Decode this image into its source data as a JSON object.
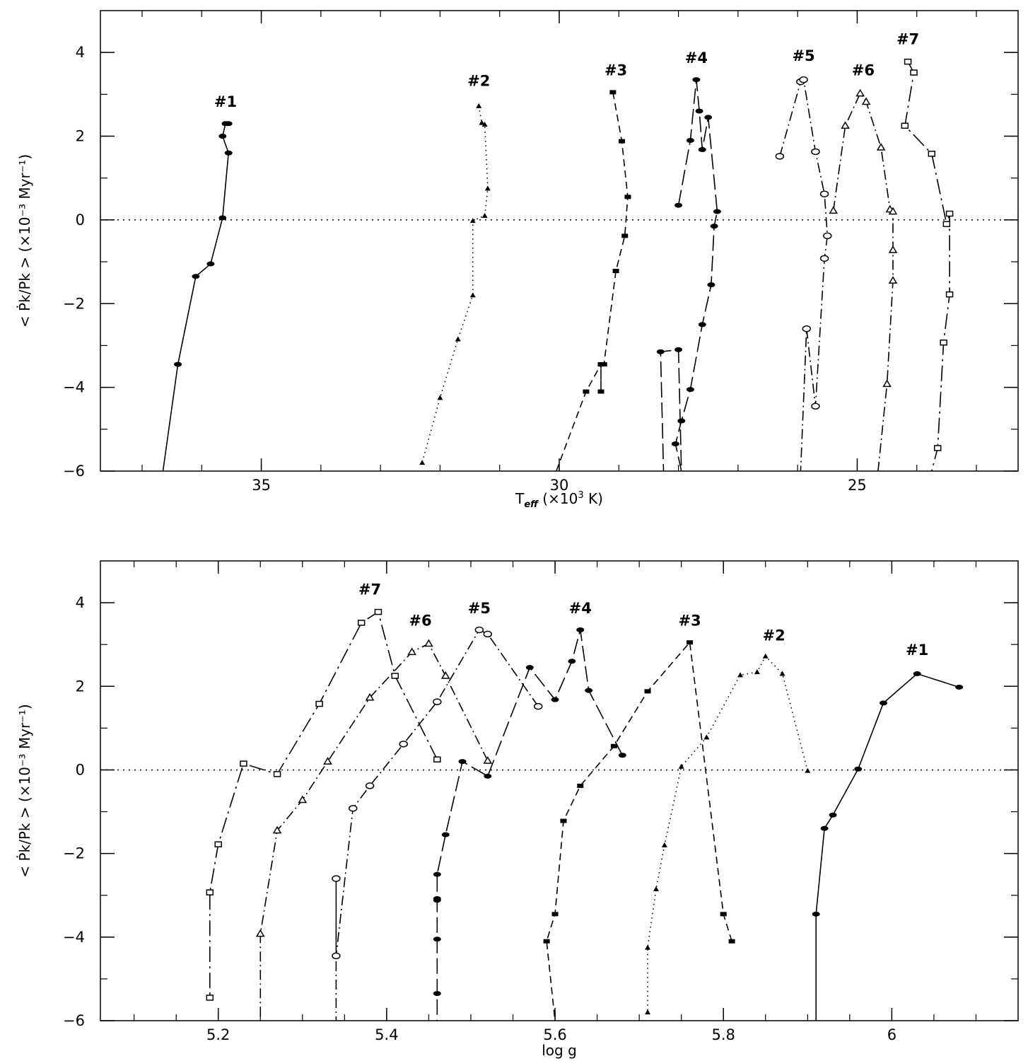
{
  "chart_data": [
    {
      "type": "line",
      "xlabel": "T_eff (×10³ K)",
      "xlabel_parts": [
        "T",
        "eff",
        " (×10",
        "3",
        " K)"
      ],
      "ylabel": "< Ṗk/Pk > (×10⁻³ Myr⁻¹)",
      "xlim": [
        37.7,
        22.3
      ],
      "ylim": [
        -6,
        5
      ],
      "x_ticks": [
        35,
        30,
        25
      ],
      "y_ticks": [
        -6,
        -4,
        -2,
        0,
        2,
        4
      ],
      "zero_line": true,
      "series": [
        {
          "name": "#1",
          "marker": "filled-circle",
          "dash": "solid",
          "points": [
            [
              35.55,
              2.3
            ],
            [
              35.6,
              2.3
            ],
            [
              35.65,
              2.0
            ],
            [
              35.55,
              1.6
            ],
            [
              35.65,
              0.05
            ],
            [
              35.85,
              -1.05
            ],
            [
              36.1,
              -1.35
            ],
            [
              36.4,
              -3.45
            ],
            [
              36.65,
              -6.0
            ]
          ]
        },
        {
          "name": "#2",
          "marker": "filled-triangle",
          "dash": "dotted",
          "points": [
            [
              31.35,
              2.72
            ],
            [
              31.3,
              2.32
            ],
            [
              31.25,
              2.28
            ],
            [
              31.2,
              0.75
            ],
            [
              31.25,
              0.1
            ],
            [
              31.45,
              -0.02
            ],
            [
              31.45,
              -1.8
            ],
            [
              31.7,
              -2.85
            ],
            [
              32.0,
              -4.25
            ],
            [
              32.3,
              -5.8
            ]
          ]
        },
        {
          "name": "#3",
          "marker": "filled-square",
          "dash": "dashed",
          "points": [
            [
              29.1,
              3.05
            ],
            [
              28.95,
              1.88
            ],
            [
              28.85,
              0.55
            ],
            [
              28.9,
              -0.38
            ],
            [
              29.05,
              -1.22
            ],
            [
              29.25,
              -3.45
            ],
            [
              29.3,
              -3.45
            ],
            [
              29.3,
              -4.1
            ],
            [
              29.3,
              -3.45
            ],
            [
              29.55,
              -4.1
            ],
            [
              30.05,
              -6.0
            ]
          ]
        },
        {
          "name": "#4",
          "marker": "filled-circle",
          "dash": "long-dash",
          "points": [
            [
              28.0,
              0.35
            ],
            [
              27.8,
              1.9
            ],
            [
              27.7,
              3.35
            ],
            [
              27.65,
              2.6
            ],
            [
              27.6,
              1.68
            ],
            [
              27.5,
              2.45
            ],
            [
              27.35,
              0.2
            ],
            [
              27.4,
              -0.15
            ],
            [
              27.45,
              -1.55
            ],
            [
              27.6,
              -2.5
            ],
            [
              27.8,
              -4.05
            ],
            [
              27.95,
              -4.8
            ],
            [
              28.05,
              -5.35
            ],
            [
              27.95,
              -6.0
            ],
            [
              28.0,
              -3.1
            ],
            [
              28.3,
              -3.15
            ],
            [
              28.25,
              -6.0
            ]
          ]
        },
        {
          "name": "#5",
          "marker": "open-circle",
          "dash": "dash-dot",
          "points": [
            [
              26.3,
              1.52
            ],
            [
              25.95,
              3.3
            ],
            [
              25.9,
              3.35
            ],
            [
              25.7,
              1.63
            ],
            [
              25.55,
              0.62
            ],
            [
              25.5,
              -0.38
            ],
            [
              25.55,
              -0.92
            ],
            [
              25.7,
              -4.45
            ],
            [
              25.85,
              -2.6
            ],
            [
              25.95,
              -6.0
            ]
          ]
        },
        {
          "name": "#6",
          "marker": "open-triangle",
          "dash": "dash-dot",
          "points": [
            [
              25.4,
              0.22
            ],
            [
              25.2,
              2.25
            ],
            [
              24.95,
              3.02
            ],
            [
              24.85,
              2.82
            ],
            [
              24.6,
              1.73
            ],
            [
              24.45,
              0.25
            ],
            [
              24.4,
              0.2
            ],
            [
              24.4,
              -0.72
            ],
            [
              24.4,
              -1.45
            ],
            [
              24.5,
              -3.92
            ],
            [
              24.65,
              -6.0
            ]
          ]
        },
        {
          "name": "#7",
          "marker": "open-square",
          "dash": "long-dash-dot",
          "points": [
            [
              24.15,
              3.78
            ],
            [
              24.05,
              3.52
            ],
            [
              24.2,
              2.25
            ],
            [
              23.75,
              1.58
            ],
            [
              23.5,
              -0.1
            ],
            [
              23.45,
              0.15
            ],
            [
              23.45,
              -1.78
            ],
            [
              23.55,
              -2.93
            ],
            [
              23.65,
              -5.45
            ],
            [
              23.75,
              -6.0
            ]
          ]
        }
      ],
      "series_labels": [
        {
          "text": "#1",
          "x": 35.6,
          "y": 2.7
        },
        {
          "text": "#2",
          "x": 31.35,
          "y": 3.2
        },
        {
          "text": "#3",
          "x": 29.05,
          "y": 3.45
        },
        {
          "text": "#4",
          "x": 27.7,
          "y": 3.75
        },
        {
          "text": "#5",
          "x": 25.9,
          "y": 3.8
        },
        {
          "text": "#6",
          "x": 24.9,
          "y": 3.45
        },
        {
          "text": "#7",
          "x": 24.15,
          "y": 4.2
        }
      ]
    },
    {
      "type": "line",
      "xlabel": "log g",
      "ylabel": "< Ṗk/Pk > (×10⁻³ Myr⁻¹)",
      "xlim": [
        5.06,
        6.15
      ],
      "ylim": [
        -6,
        5
      ],
      "x_ticks": [
        5.2,
        5.4,
        5.6,
        5.8,
        6
      ],
      "x_tick_labels": [
        "5.2",
        "5.4",
        "5.6",
        "5.8",
        "6"
      ],
      "y_ticks": [
        -6,
        -4,
        -2,
        0,
        2,
        4
      ],
      "zero_line": true,
      "series": [
        {
          "name": "#1",
          "marker": "filled-circle",
          "dash": "solid",
          "points": [
            [
              6.08,
              1.98
            ],
            [
              6.03,
              2.3
            ],
            [
              5.99,
              1.6
            ],
            [
              5.96,
              0.02
            ],
            [
              5.93,
              -1.08
            ],
            [
              5.92,
              -1.4
            ],
            [
              5.91,
              -3.45
            ],
            [
              5.91,
              -6.0
            ]
          ]
        },
        {
          "name": "#2",
          "marker": "filled-triangle",
          "dash": "dotted",
          "points": [
            [
              5.9,
              -0.02
            ],
            [
              5.87,
              2.3
            ],
            [
              5.85,
              2.72
            ],
            [
              5.84,
              2.34
            ],
            [
              5.82,
              2.27
            ],
            [
              5.78,
              0.78
            ],
            [
              5.75,
              0.08
            ],
            [
              5.73,
              -1.8
            ],
            [
              5.72,
              -2.85
            ],
            [
              5.71,
              -4.25
            ],
            [
              5.71,
              -5.8
            ]
          ]
        },
        {
          "name": "#3",
          "marker": "filled-square",
          "dash": "dashed",
          "points": [
            [
              5.81,
              -4.1
            ],
            [
              5.8,
              -3.45
            ],
            [
              5.76,
              3.05
            ],
            [
              5.71,
              1.88
            ],
            [
              5.67,
              0.57
            ],
            [
              5.63,
              -0.38
            ],
            [
              5.61,
              -1.22
            ],
            [
              5.6,
              -3.45
            ],
            [
              5.59,
              -4.1
            ],
            [
              5.6,
              -6.0
            ]
          ]
        },
        {
          "name": "#4",
          "marker": "filled-circle",
          "dash": "long-dash",
          "points": [
            [
              5.68,
              0.35
            ],
            [
              5.64,
              1.9
            ],
            [
              5.63,
              3.35
            ],
            [
              5.62,
              2.6
            ],
            [
              5.6,
              1.68
            ],
            [
              5.57,
              2.45
            ],
            [
              5.52,
              -0.15
            ],
            [
              5.49,
              0.2
            ],
            [
              5.47,
              -1.55
            ],
            [
              5.46,
              -2.5
            ],
            [
              5.46,
              -3.08
            ],
            [
              5.46,
              -3.12
            ],
            [
              5.46,
              -4.05
            ],
            [
              5.46,
              -5.35
            ],
            [
              5.46,
              -6.0
            ]
          ]
        },
        {
          "name": "#5",
          "marker": "open-circle",
          "dash": "dash-dot",
          "points": [
            [
              5.58,
              1.52
            ],
            [
              5.52,
              3.25
            ],
            [
              5.51,
              3.35
            ],
            [
              5.46,
              1.63
            ],
            [
              5.42,
              0.62
            ],
            [
              5.38,
              -0.38
            ],
            [
              5.36,
              -0.92
            ],
            [
              5.34,
              -4.45
            ],
            [
              5.34,
              -2.6
            ],
            [
              5.34,
              -6.0
            ]
          ]
        },
        {
          "name": "#6",
          "marker": "open-triangle",
          "dash": "dash-dot",
          "points": [
            [
              5.52,
              0.22
            ],
            [
              5.47,
              2.25
            ],
            [
              5.45,
              3.02
            ],
            [
              5.43,
              2.82
            ],
            [
              5.38,
              1.73
            ],
            [
              5.33,
              0.2
            ],
            [
              5.3,
              -0.72
            ],
            [
              5.27,
              -1.45
            ],
            [
              5.25,
              -3.92
            ],
            [
              5.25,
              -6.0
            ]
          ]
        },
        {
          "name": "#7",
          "marker": "open-square",
          "dash": "long-dash-dot",
          "points": [
            [
              5.46,
              0.25
            ],
            [
              5.41,
              2.25
            ],
            [
              5.39,
              3.78
            ],
            [
              5.37,
              3.52
            ],
            [
              5.32,
              1.58
            ],
            [
              5.27,
              -0.1
            ],
            [
              5.23,
              0.15
            ],
            [
              5.2,
              -1.78
            ],
            [
              5.19,
              -2.93
            ],
            [
              5.19,
              -5.45
            ]
          ]
        }
      ],
      "series_labels": [
        {
          "text": "#1",
          "x": 6.03,
          "y": 2.75
        },
        {
          "text": "#2",
          "x": 5.86,
          "y": 3.1
        },
        {
          "text": "#3",
          "x": 5.76,
          "y": 3.45
        },
        {
          "text": "#4",
          "x": 5.63,
          "y": 3.75
        },
        {
          "text": "#5",
          "x": 5.51,
          "y": 3.75
        },
        {
          "text": "#6",
          "x": 5.44,
          "y": 3.45
        },
        {
          "text": "#7",
          "x": 5.38,
          "y": 4.2
        }
      ]
    }
  ]
}
